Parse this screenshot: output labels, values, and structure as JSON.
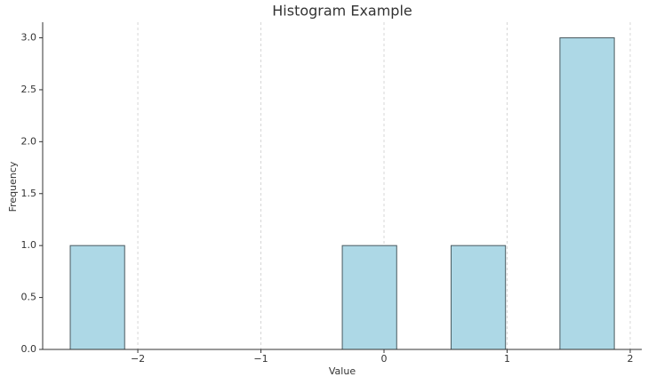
{
  "chart_data": {
    "type": "histogram",
    "title": "Histogram Example",
    "x_label": "Value",
    "y_label": "Frequency",
    "bins": [
      -2.549,
      -2.107,
      -1.665,
      -1.223,
      -0.781,
      -0.339,
      0.103,
      0.545,
      0.987,
      1.429,
      1.871
    ],
    "values": [
      1,
      0,
      0,
      0,
      0,
      1,
      0,
      1,
      0,
      3
    ],
    "color": "#add8e6",
    "edgecolor": "#4a5a60",
    "xlim": [
      -2.773,
      2.094
    ],
    "xticks": [
      {
        "value": -2,
        "label": "−2"
      },
      {
        "value": -1,
        "label": "−1"
      },
      0,
      1,
      2
    ],
    "ylim": [
      0,
      3.15
    ],
    "yticks": [
      {
        "value": 0,
        "label": "0.0"
      },
      {
        "value": 0.5,
        "label": "0.5"
      },
      {
        "value": 1,
        "label": "1.0"
      },
      {
        "value": 1.5,
        "label": "1.5"
      },
      {
        "value": 2,
        "label": "2.0"
      },
      {
        "value": 2.5,
        "label": "2.5"
      },
      {
        "value": 3,
        "label": "3.0"
      }
    ],
    "grid": "x"
  }
}
